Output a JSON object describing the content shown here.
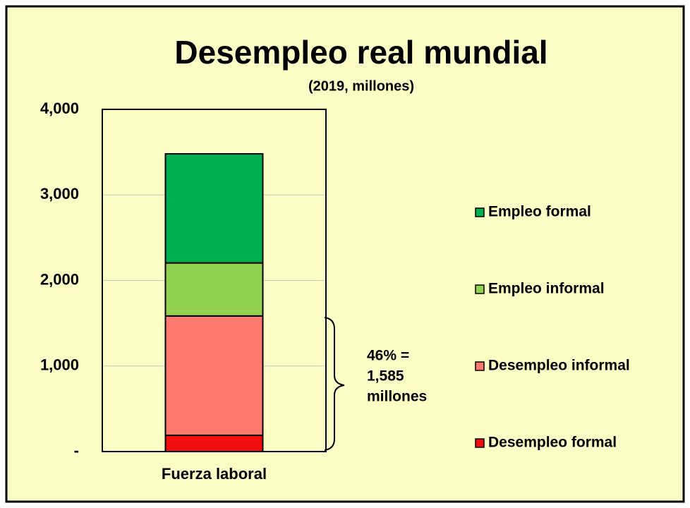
{
  "chart_data": {
    "type": "stacked_bar",
    "title": "Desempleo real mundial",
    "subtitle": "(2019, millones)",
    "categories": [
      "Fuerza laboral"
    ],
    "series": [
      {
        "name": "Desempleo formal",
        "color": "#f20d0d",
        "values": [
          190
        ]
      },
      {
        "name": "Desempleo informal",
        "color": "#ff7a6e",
        "values": [
          1395
        ]
      },
      {
        "name": "Empleo informal",
        "color": "#92d050",
        "values": [
          620
        ]
      },
      {
        "name": "Empleo formal",
        "color": "#00b050",
        "values": [
          1275
        ]
      }
    ],
    "ylim": [
      0,
      4000
    ],
    "yticks": [
      {
        "value": 0,
        "label": "-"
      },
      {
        "value": 1000,
        "label": "1,000"
      },
      {
        "value": 2000,
        "label": "2,000"
      },
      {
        "value": 3000,
        "label": "3,000"
      },
      {
        "value": 4000,
        "label": "4,000"
      }
    ],
    "grid": true,
    "legend": "right",
    "annotation": [
      "46% =",
      "1,585",
      "millones"
    ]
  }
}
